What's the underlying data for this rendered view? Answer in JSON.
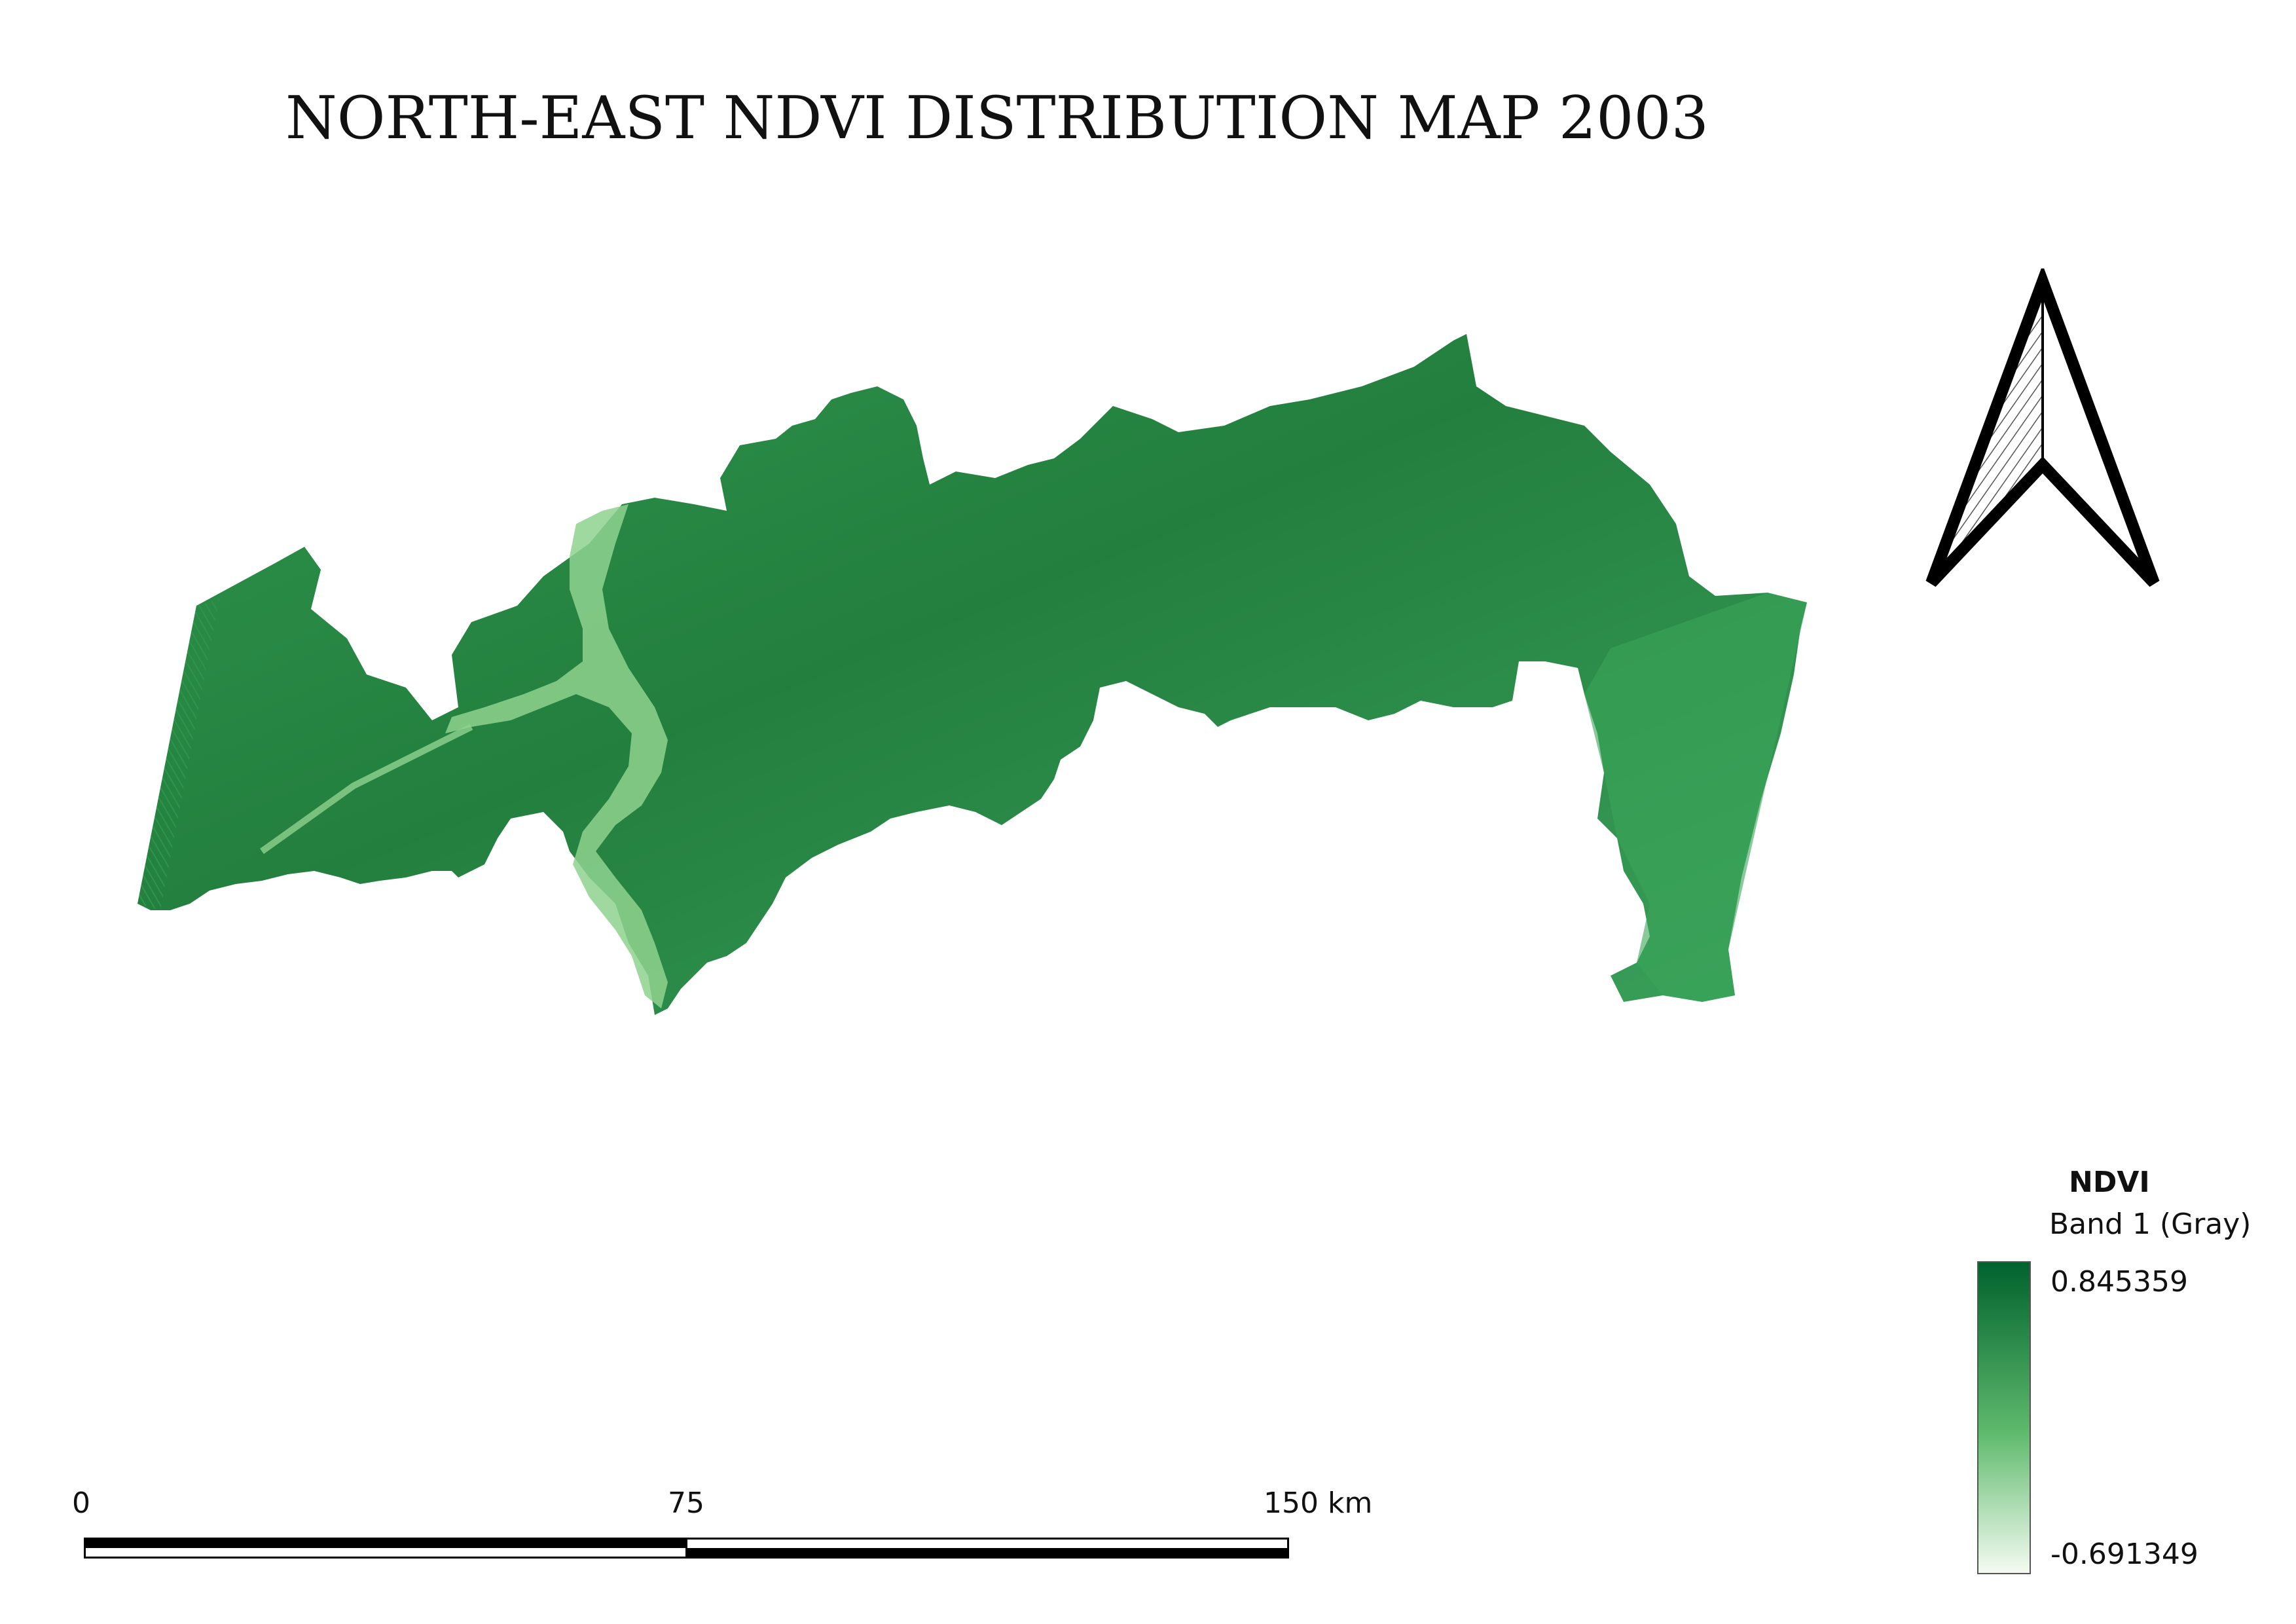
{
  "title": "NORTH-EAST NDVI DISTRIBUTION MAP 2003",
  "colors": {
    "ndvi_high": "#00622d",
    "ndvi_mid": "#5fba6d",
    "ndvi_low": "#f5fbf2",
    "map_fill": "#2f9a4f",
    "map_light": "#8fd28f"
  },
  "north_arrow": {
    "icon": "north-arrow-icon"
  },
  "legend": {
    "title": "NDVI",
    "band": "Band 1 (Gray)",
    "max": "0.845359",
    "min": "-0.691349"
  },
  "scalebar": {
    "labels": [
      "0",
      "75",
      "150 km"
    ]
  }
}
